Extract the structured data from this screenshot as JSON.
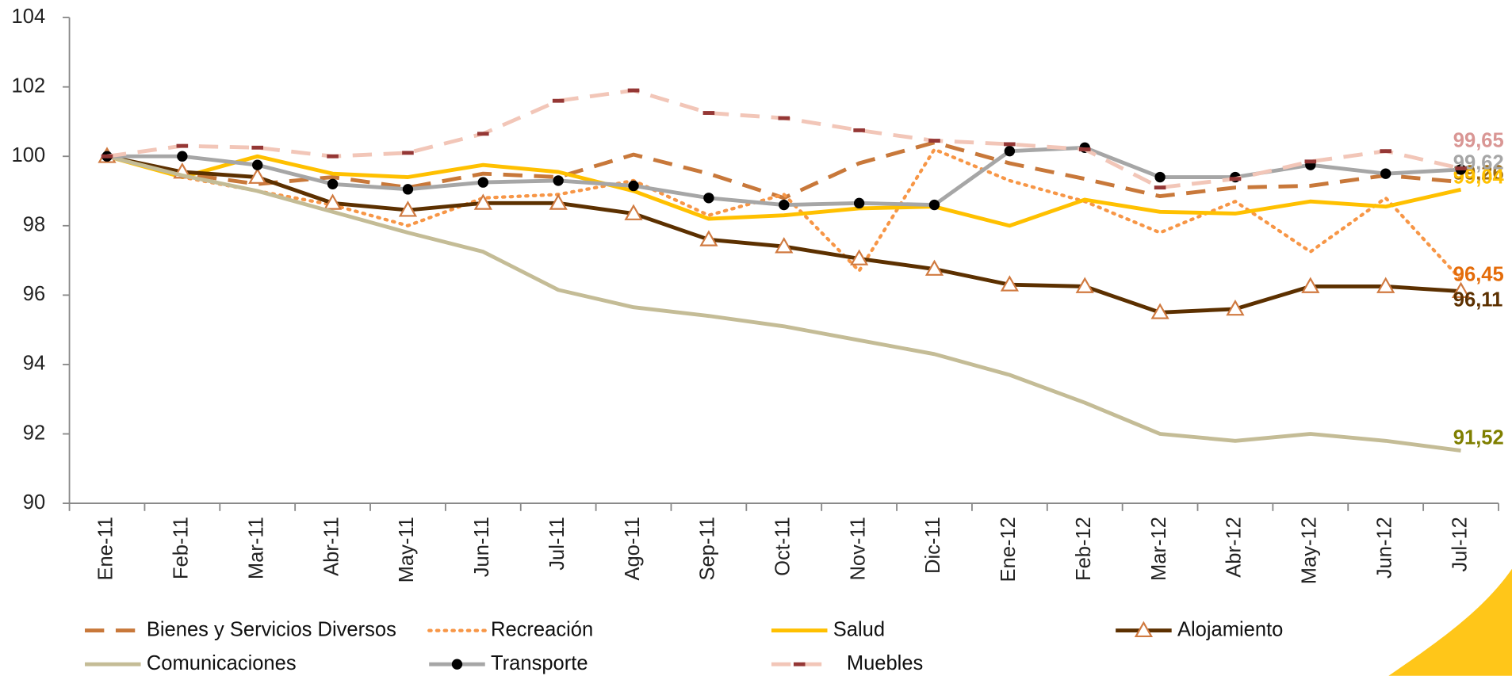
{
  "chart_data": {
    "type": "line",
    "categories": [
      "Ene-11",
      "Feb-11",
      "Mar-11",
      "Abr-11",
      "May-11",
      "Jun-11",
      "Jul-11",
      "Ago-11",
      "Sep-11",
      "Oct-11",
      "Nov-11",
      "Dic-11",
      "Ene-12",
      "Feb-12",
      "Mar-12",
      "Abr-12",
      "May-12",
      "Jun-12",
      "Jul-12"
    ],
    "ylim": [
      90,
      104
    ],
    "yticks": [
      90,
      92,
      94,
      96,
      98,
      100,
      102,
      104
    ],
    "grid": false,
    "legend": "bottom",
    "series": [
      {
        "name": "Bienes y Servicios Diversos",
        "color": "#c8783a",
        "style": "dashed",
        "label_color": "#9c6a10",
        "values": [
          100,
          99.5,
          99.2,
          99.4,
          99.1,
          99.5,
          99.4,
          100.05,
          99.5,
          98.8,
          99.8,
          100.4,
          99.8,
          99.35,
          98.85,
          99.1,
          99.15,
          99.45,
          99.26
        ],
        "value_labels": [
          null,
          null,
          null,
          null,
          null,
          null,
          null,
          null,
          null,
          null,
          null,
          null,
          null,
          null,
          null,
          null,
          null,
          null,
          "99,26"
        ]
      },
      {
        "name": "Recreación",
        "color": "#f79646",
        "style": "dotted",
        "label_color": "#e46c0a",
        "values": [
          100,
          99.4,
          99.0,
          98.6,
          98.0,
          98.8,
          98.9,
          99.3,
          98.3,
          98.9,
          96.7,
          100.2,
          99.3,
          98.7,
          97.8,
          98.7,
          97.25,
          98.8,
          96.45
        ],
        "value_labels": [
          null,
          null,
          null,
          null,
          null,
          null,
          null,
          null,
          null,
          null,
          null,
          null,
          null,
          null,
          null,
          null,
          null,
          null,
          "96,45"
        ]
      },
      {
        "name": "Salud",
        "color": "#ffc000",
        "style": "solid",
        "label_color": "#ffc000",
        "values": [
          100,
          99.4,
          100.0,
          99.5,
          99.4,
          99.75,
          99.55,
          99.0,
          98.2,
          98.3,
          98.5,
          98.55,
          98.0,
          98.75,
          98.4,
          98.35,
          98.7,
          98.55,
          99.04
        ],
        "value_labels": [
          null,
          null,
          null,
          null,
          null,
          null,
          null,
          null,
          null,
          null,
          null,
          null,
          null,
          null,
          null,
          null,
          null,
          null,
          "99,04"
        ]
      },
      {
        "name": "Alojamiento",
        "color": "#5c3000",
        "style": "solid",
        "marker": "triangle",
        "label_color": "#5c3000",
        "values": [
          100,
          99.55,
          99.4,
          98.65,
          98.45,
          98.65,
          98.65,
          98.35,
          97.6,
          97.4,
          97.05,
          96.75,
          96.3,
          96.25,
          95.5,
          95.6,
          96.25,
          96.25,
          96.11
        ],
        "value_labels": [
          null,
          null,
          null,
          null,
          null,
          null,
          null,
          null,
          null,
          null,
          null,
          null,
          null,
          null,
          null,
          null,
          null,
          null,
          "96,11"
        ]
      },
      {
        "name": "Comunicaciones",
        "color": "#c4bc96",
        "style": "solid",
        "label_color": "#7f7f00",
        "values": [
          100,
          99.45,
          99.0,
          98.4,
          97.8,
          97.25,
          96.15,
          95.65,
          95.4,
          95.1,
          94.7,
          94.3,
          93.7,
          92.9,
          92.0,
          91.8,
          92.0,
          91.8,
          91.52
        ],
        "value_labels": [
          null,
          null,
          null,
          null,
          null,
          null,
          null,
          null,
          null,
          null,
          null,
          null,
          null,
          null,
          null,
          null,
          null,
          null,
          "91,52"
        ]
      },
      {
        "name": "Transporte",
        "color": "#a6a6a6",
        "style": "solid",
        "marker": "circle",
        "label_color": "#a6a6a6",
        "values": [
          100,
          100,
          99.75,
          99.2,
          99.05,
          99.25,
          99.3,
          99.15,
          98.8,
          98.6,
          98.65,
          98.6,
          100.15,
          100.25,
          99.4,
          99.4,
          99.75,
          99.5,
          99.62
        ],
        "value_labels": [
          null,
          null,
          null,
          null,
          null,
          null,
          null,
          null,
          null,
          null,
          null,
          null,
          null,
          null,
          null,
          null,
          null,
          null,
          "99,62"
        ]
      },
      {
        "name": "Muebles",
        "color": "#f2c6b8",
        "style": "dashed",
        "marker": "dash",
        "label_color": "#d99694",
        "values": [
          100,
          100.3,
          100.25,
          100.0,
          100.1,
          100.65,
          101.6,
          101.9,
          101.25,
          101.1,
          100.75,
          100.45,
          100.35,
          100.2,
          99.1,
          99.35,
          99.85,
          100.15,
          99.65
        ],
        "value_labels": [
          null,
          null,
          null,
          null,
          null,
          null,
          null,
          null,
          null,
          null,
          null,
          null,
          null,
          null,
          null,
          null,
          null,
          null,
          "99,65"
        ]
      }
    ]
  }
}
